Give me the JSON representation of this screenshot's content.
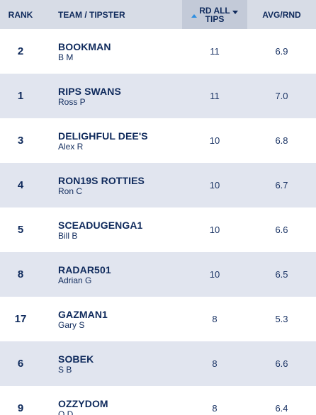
{
  "header": {
    "rank": "RANK",
    "team": "TEAM / TIPSTER",
    "tips_line1": "RD ALL",
    "tips_line2": "TIPS",
    "avg": "AVG/RND"
  },
  "rows": [
    {
      "rank": "2",
      "team": "BOOKMAN",
      "tipster": "B M",
      "tips": "11",
      "avg": "6.9"
    },
    {
      "rank": "1",
      "team": "RIPS SWANS",
      "tipster": "Ross P",
      "tips": "11",
      "avg": "7.0"
    },
    {
      "rank": "3",
      "team": "DELIGHFUL DEE'S",
      "tipster": "Alex R",
      "tips": "10",
      "avg": "6.8"
    },
    {
      "rank": "4",
      "team": "RON19S ROTTIES",
      "tipster": "Ron C",
      "tips": "10",
      "avg": "6.7"
    },
    {
      "rank": "5",
      "team": "SCEADUGENGA1",
      "tipster": "Bill B",
      "tips": "10",
      "avg": "6.6"
    },
    {
      "rank": "8",
      "team": "RADAR501",
      "tipster": "Adrian G",
      "tips": "10",
      "avg": "6.5"
    },
    {
      "rank": "17",
      "team": "GAZMAN1",
      "tipster": "Gary S",
      "tips": "8",
      "avg": "5.3"
    },
    {
      "rank": "6",
      "team": "SOBEK",
      "tipster": "S B",
      "tips": "8",
      "avg": "6.6"
    },
    {
      "rank": "9",
      "team": "OZZYDOM",
      "tipster": "O D",
      "tips": "8",
      "avg": "6.4"
    }
  ],
  "colors": {
    "text": "#0f2a5c",
    "header_bg": "#d7dce6",
    "sorted_col_bg": "#c3cad8",
    "row_alt": "#e1e5ef",
    "sort_active": "#2e8ee0"
  }
}
